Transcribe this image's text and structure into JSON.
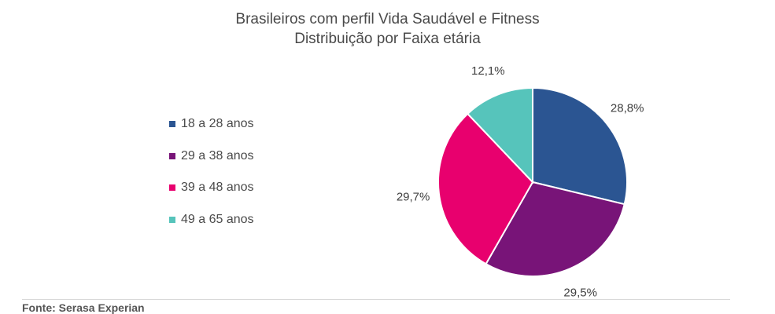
{
  "chart_data": {
    "type": "pie",
    "title": "Brasileiros com perfil Vida Saudável e Fitness",
    "subtitle": "Distribuição por Faixa etária",
    "categories": [
      "18 a 28 anos",
      "29 a 38 anos",
      "39 a 48 anos",
      "49 a 65 anos"
    ],
    "values": [
      28.8,
      29.5,
      29.7,
      12.1
    ],
    "labels": [
      "28,8%",
      "29,5%",
      "29,7%",
      "12,1%"
    ],
    "colors": [
      "#2b5592",
      "#781478",
      "#e8006e",
      "#56c4bb"
    ],
    "legend_position": "left"
  },
  "source": "Fonte: Serasa Experian"
}
